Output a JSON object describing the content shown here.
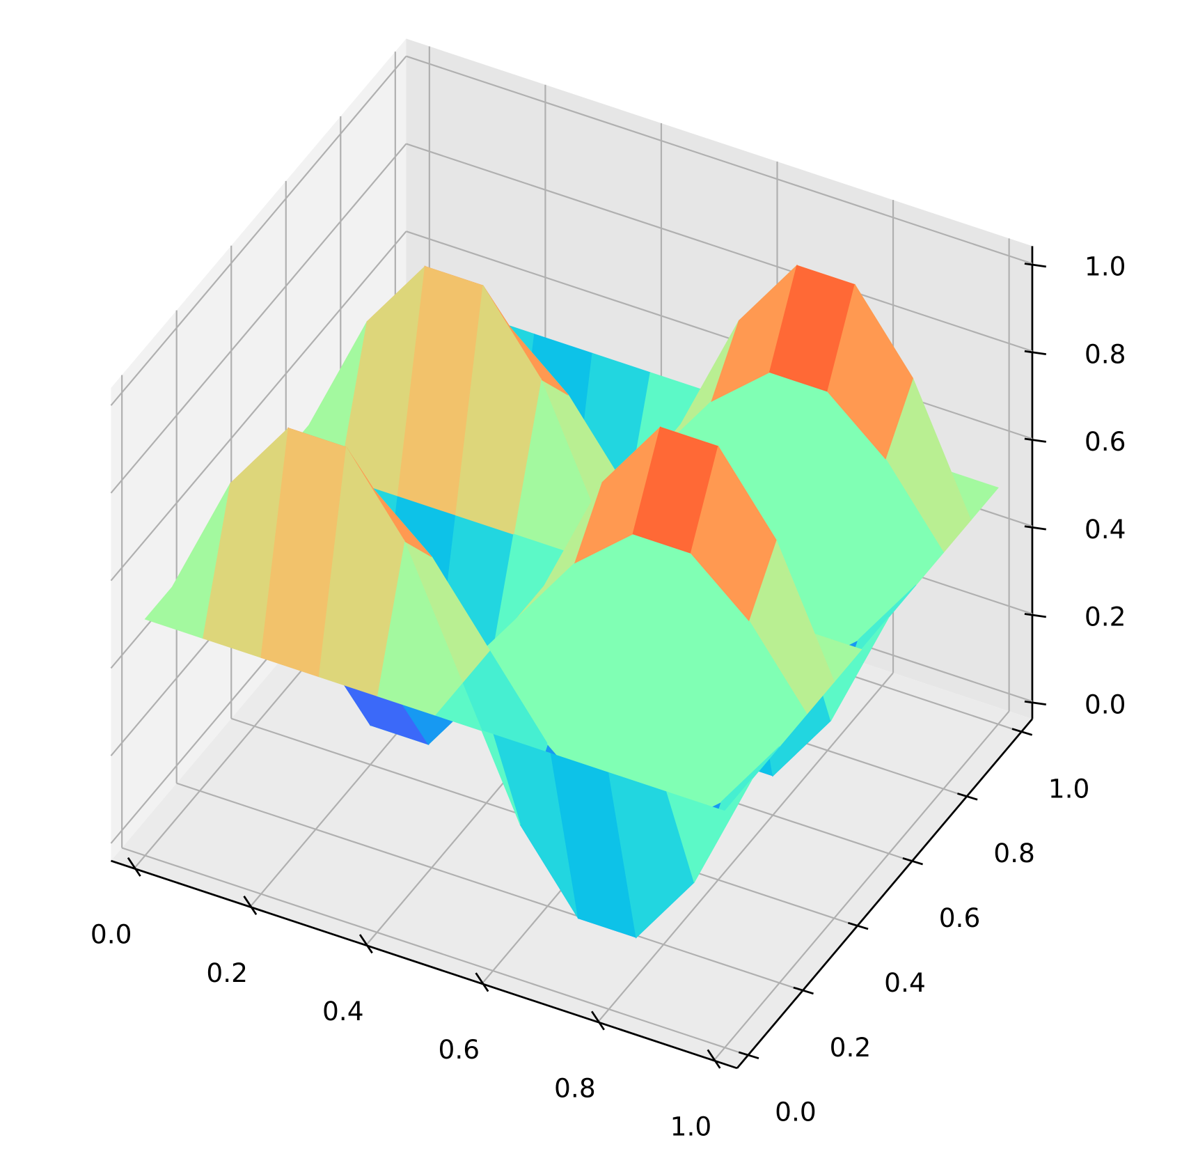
{
  "chart_data": {
    "type": "surface",
    "colormap": "rainbow",
    "grid": true,
    "x": [
      0,
      0.1,
      0.2,
      0.3,
      0.4,
      0.5,
      0.6,
      0.7,
      0.8,
      0.9,
      1
    ],
    "y": [
      0,
      0.1,
      0.2,
      0.3,
      0.4,
      0.5,
      0.6,
      0.7,
      0.8,
      0.9,
      1
    ],
    "z": [
      [
        0.5,
        0.5,
        0.5,
        0.5,
        0.5,
        0.5,
        0.5,
        0.5,
        0.5,
        0.5,
        0.5
      ],
      [
        0.5,
        0.78,
        0.95,
        0.95,
        0.78,
        0.5,
        0.22,
        0.05,
        0.05,
        0.22,
        0.5
      ],
      [
        0.5,
        0.67,
        0.78,
        0.78,
        0.67,
        0.5,
        0.33,
        0.22,
        0.22,
        0.33,
        0.5
      ],
      [
        0.5,
        0.33,
        0.22,
        0.22,
        0.33,
        0.5,
        0.67,
        0.78,
        0.78,
        0.67,
        0.5
      ],
      [
        0.5,
        0.22,
        0.05,
        0.05,
        0.22,
        0.5,
        0.78,
        0.95,
        0.95,
        0.78,
        0.5
      ],
      [
        0.5,
        0.5,
        0.5,
        0.5,
        0.5,
        0.5,
        0.5,
        0.5,
        0.5,
        0.5,
        0.5
      ],
      [
        0.5,
        0.78,
        0.95,
        0.95,
        0.78,
        0.5,
        0.22,
        0.05,
        0.05,
        0.22,
        0.5
      ],
      [
        0.5,
        0.67,
        0.78,
        0.78,
        0.67,
        0.5,
        0.33,
        0.22,
        0.22,
        0.33,
        0.5
      ],
      [
        0.5,
        0.33,
        0.22,
        0.22,
        0.33,
        0.5,
        0.67,
        0.78,
        0.78,
        0.67,
        0.5
      ],
      [
        0.5,
        0.22,
        0.05,
        0.05,
        0.22,
        0.5,
        0.78,
        0.95,
        0.95,
        0.78,
        0.5
      ],
      [
        0.5,
        0.5,
        0.5,
        0.5,
        0.5,
        0.5,
        0.5,
        0.5,
        0.5,
        0.5,
        0.5
      ]
    ],
    "xlim": [
      0,
      1
    ],
    "ylim": [
      0,
      1
    ],
    "zlim": [
      0,
      1
    ],
    "xticks": [
      {
        "value": 0,
        "label": "0.0"
      },
      0.2,
      0.4,
      0.6,
      0.8,
      {
        "value": 1,
        "label": "1.0"
      }
    ],
    "yticks": [
      {
        "value": 0,
        "label": "0.0"
      },
      0.2,
      0.4,
      0.6,
      0.8,
      {
        "value": 1,
        "label": "1.0"
      }
    ],
    "zticks": [
      {
        "value": 0,
        "label": "0.0"
      },
      0.2,
      0.4,
      0.6,
      0.8,
      {
        "value": 1,
        "label": "1.0"
      }
    ]
  }
}
